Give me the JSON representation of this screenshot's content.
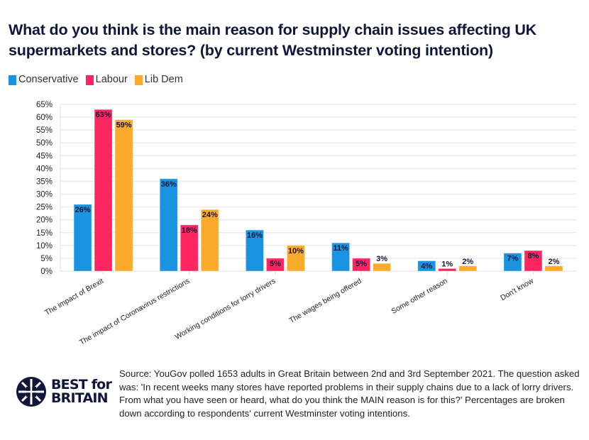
{
  "title": "What do you think is the main reason for supply chain issues affecting UK supermarkets and stores? (by current Westminster voting intention)",
  "chart_data": {
    "type": "bar",
    "categories": [
      "The impact of Brexit",
      "The impact of Coronavirus restrictions",
      "Working conditions for lorry drivers",
      "The wages being offered",
      "Some other reason",
      "Don't know"
    ],
    "series": [
      {
        "name": "Conservative",
        "color": "#1a93e0",
        "values": [
          26,
          36,
          16,
          11,
          4,
          7
        ]
      },
      {
        "name": "Labour",
        "color": "#ff2660",
        "values": [
          63,
          18,
          5,
          5,
          1,
          8
        ]
      },
      {
        "name": "Lib Dem",
        "color": "#fbab2b",
        "values": [
          59,
          24,
          10,
          3,
          2,
          2
        ]
      }
    ],
    "ylim": [
      0,
      65
    ],
    "yticks": [
      0,
      5,
      10,
      15,
      20,
      25,
      30,
      35,
      40,
      45,
      50,
      55,
      60,
      65
    ],
    "ytick_suffix": "%",
    "grid": true,
    "legend_placement": "top-left",
    "data_labels": true
  },
  "source": "Source: YouGov polled 1653 adults in Great Britain between 2nd and 3rd September 2021. The question asked was: 'In recent weeks many stores have reported problems in their supply chains due to a lack of lorry drivers. From what you have seen or heard, what do you think the MAIN reason is for this?' Percentages are broken down according to respondents' current Westminster voting intentions.",
  "logo": {
    "line1": "BEST for",
    "line2": "BRITAIN"
  }
}
